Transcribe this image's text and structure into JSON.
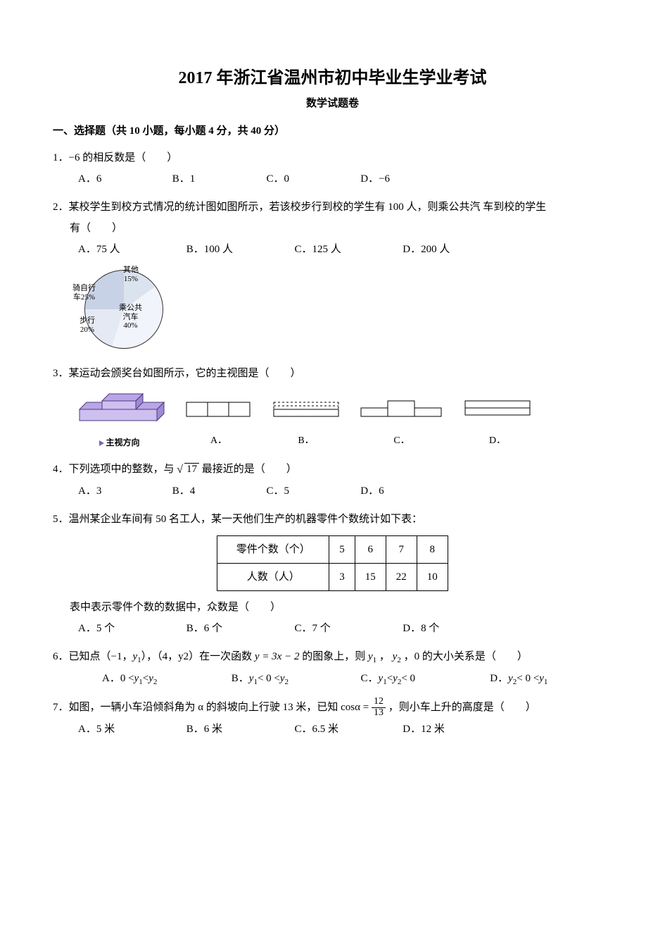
{
  "title": "2017 年浙江省温州市初中毕业生学业考试",
  "subtitle": "数学试题卷",
  "section1_head": "一、选择题（共 10 小题，每小题 4 分，共 40 分）",
  "q1": {
    "text": "1．−6 的相反数是（　　）",
    "A": "A．6",
    "B": "B．1",
    "C": "C．0",
    "D": "D．−6"
  },
  "q2": {
    "text": "2．某校学生到校方式情况的统计图如图所示，若该校步行到校的学生有 100 人，则乘公共汽 车到校的学生",
    "text2": "有（　　）",
    "A": "A．75 人",
    "B": "B．100 人",
    "C": "C．125 人",
    "D": "D．200 人",
    "pie": {
      "colors": {
        "bike": "#c8d2e6",
        "other": "#dbe3ef",
        "bus": "#f1f4fa",
        "walk": "#e4e9f3"
      },
      "labels": {
        "other": "其他\n15%",
        "bike": "骑自行\n车25%",
        "walk": "步行\n20%",
        "bus": "乘公共\n汽车\n40%"
      }
    }
  },
  "q3": {
    "text": "3．某运动会颁奖台如图所示，它的主视图是（　　）",
    "caption": "主视方向",
    "A": "A．",
    "B": "B．",
    "C": "C．",
    "D": "D．",
    "podium_colors": {
      "top": "#b9a6e6",
      "side": "#9f88d6",
      "front": "#cdbff0"
    }
  },
  "q4": {
    "text_pre": "4．下列选项中的整数，与 ",
    "radicand": "17",
    "text_post": " 最接近的是（　　）",
    "A": "A．3",
    "B": "B．4",
    "C": "C．5",
    "D": "D．6"
  },
  "q5": {
    "text": "5．温州某企业车间有 50 名工人，某一天他们生产的机器零件个数统计如下表：",
    "row1_head": "零件个数（个）",
    "row2_head": "人数（人）",
    "cols": [
      "5",
      "6",
      "7",
      "8"
    ],
    "vals": [
      "3",
      "15",
      "22",
      "10"
    ],
    "tail": "表中表示零件个数的数据中，众数是（　　）",
    "A": "A．5 个",
    "B": "B．6 个",
    "C": "C．7 个",
    "D": "D．8 个"
  },
  "q6": {
    "text_pre": "6．已知点（−1，",
    "y1": "y",
    "sub1": "1",
    "mid1": "），（4，y2）在一次函数 ",
    "func": "y = 3x − 2",
    "mid2": " 的图象上，则 ",
    "y1b": "y",
    "sub1b": "1",
    "comma": " ， ",
    "y2": "y",
    "sub2": "2",
    "mid3": " ，0 的大小关系是（　　）",
    "A_pre": "A．0 < ",
    "A_y1": "y",
    "A_s1": "1",
    "A_mid": " < ",
    "A_y2": "y",
    "A_s2": "2",
    "B_pre": "B．",
    "B_y1": "y",
    "B_s1": "1",
    "B_mid": " < 0 < ",
    "B_y2": "y",
    "B_s2": "2",
    "C_pre": "C．",
    "C_y1": "y",
    "C_s1": "1",
    "C_mid": " < ",
    "C_y2": "y",
    "C_s2": "2",
    "C_post": " < 0",
    "D_pre": "D．",
    "D_y1": "y",
    "D_s1": "2",
    "D_mid": " < 0 < ",
    "D_y2": "y",
    "D_s2": "1"
  },
  "q7": {
    "text_pre": "7．如图，一辆小车沿倾斜角为 α 的斜坡向上行驶 13 米，已知 cosα = ",
    "num": "12",
    "den": "13",
    "text_post": " ，则小车上升的高度是（　　）",
    "A": "A．5 米",
    "B": "B．6 米",
    "C": "C．6.5 米",
    "D": "D．12 米"
  }
}
